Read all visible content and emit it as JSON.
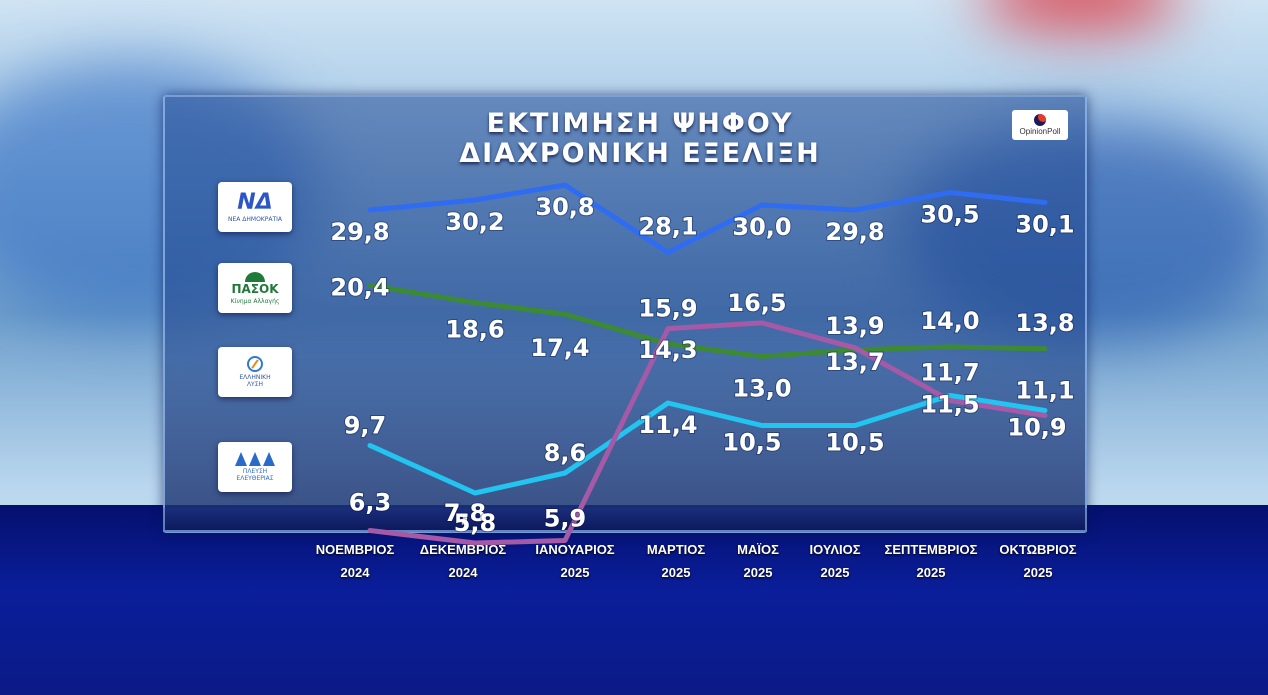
{
  "header": {
    "title_line1": "ΕΚΤΙΜΗΣΗ ΨΗΦΟΥ",
    "title_line2": "ΔΙΑΧΡΟΝΙΚΗ ΕΞΕΛΙΞΗ"
  },
  "source_logo": {
    "text": "OpinionPoll"
  },
  "party_logos": [
    {
      "main": "ΝΔ",
      "sub": "ΝΕΑ ΔΗΜΟΚΡΑΤΙΑ",
      "color": "#2c55c8"
    },
    {
      "main": "ΠΑΣΟΚ",
      "sub": "Κίνημα Αλλαγής",
      "color": "#1f7a3a"
    },
    {
      "main": "ΕΛΛΗΝΙΚΗ",
      "sub": "ΛΥΣΗ",
      "color": "#2a7bd6"
    },
    {
      "main": "ΠΛΕΥΣΗ",
      "sub": "ΕΛΕΥΘΕΡΙΑΣ",
      "color": "#2a6ac8"
    }
  ],
  "x_labels": [
    {
      "month": "ΝΟΕΜΒΡΙΟΣ",
      "year": "2024"
    },
    {
      "month": "ΔΕΚΕΜΒΡΙΟΣ",
      "year": "2024"
    },
    {
      "month": "ΙΑΝΟΥΑΡΙΟΣ",
      "year": "2025"
    },
    {
      "month": "ΜΑΡΤΙΟΣ",
      "year": "2025"
    },
    {
      "month": "ΜΑΪΟΣ",
      "year": "2025"
    },
    {
      "month": "ΙΟΥΛΙΟΣ",
      "year": "2025"
    },
    {
      "month": "ΣΕΠΤΕΜΒΡΙΟΣ",
      "year": "2025"
    },
    {
      "month": "ΟΚΤΩΒΡΙΟΣ",
      "year": "2025"
    }
  ],
  "chart_data": {
    "type": "line",
    "categories": [
      "ΝΟΕΜΒΡΙΟΣ 2024",
      "ΔΕΚΕΜΒΡΙΟΣ 2024",
      "ΙΑΝΟΥΑΡΙΟΣ 2025",
      "ΜΑΡΤΙΟΣ 2025",
      "ΜΑΪΟΣ 2025",
      "ΙΟΥΛΙΟΣ 2025",
      "ΣΕΠΤΕΜΒΡΙΟΣ 2025",
      "ΟΚΤΩΒΡΙΟΣ 2025"
    ],
    "series": [
      {
        "color": "#2f6cf2",
        "values": [
          29.8,
          30.2,
          30.8,
          28.1,
          30.0,
          29.8,
          30.5,
          30.1
        ],
        "labels": [
          "29,8",
          "30,2",
          "30,8",
          "28,1",
          "30,0",
          "29,8",
          "30,5",
          "30,1"
        ]
      },
      {
        "color": "#3c8a34",
        "values": [
          20.4,
          18.6,
          17.4,
          14.3,
          13.0,
          13.7,
          14.0,
          13.8
        ],
        "labels": [
          "20,4",
          "18,6",
          "17,4",
          "14,3",
          "13,0",
          "13,7",
          "14,0",
          "13,8"
        ]
      },
      {
        "color": "#22c4f0",
        "values": [
          9.7,
          7.8,
          8.6,
          11.4,
          10.5,
          10.5,
          11.7,
          11.1
        ],
        "labels": [
          "9,7",
          "7,8",
          "8,6",
          "11,4",
          "10,5",
          "10,5",
          "11,7",
          "11,1"
        ]
      },
      {
        "color": "#a45aa6",
        "values": [
          6.3,
          5.8,
          5.9,
          15.9,
          16.5,
          13.9,
          11.5,
          10.9
        ],
        "labels": [
          "6,3",
          "5,8",
          "5,9",
          "15,9",
          "16,5",
          "13,9",
          "11,5",
          "10,9"
        ]
      }
    ],
    "title": "ΕΚΤΙΜΗΣΗ ΨΗΦΟΥ ΔΙΑΧΡΟΝΙΚΗ ΕΞΕΛΙΞΗ",
    "grid": false,
    "legend": "left"
  }
}
